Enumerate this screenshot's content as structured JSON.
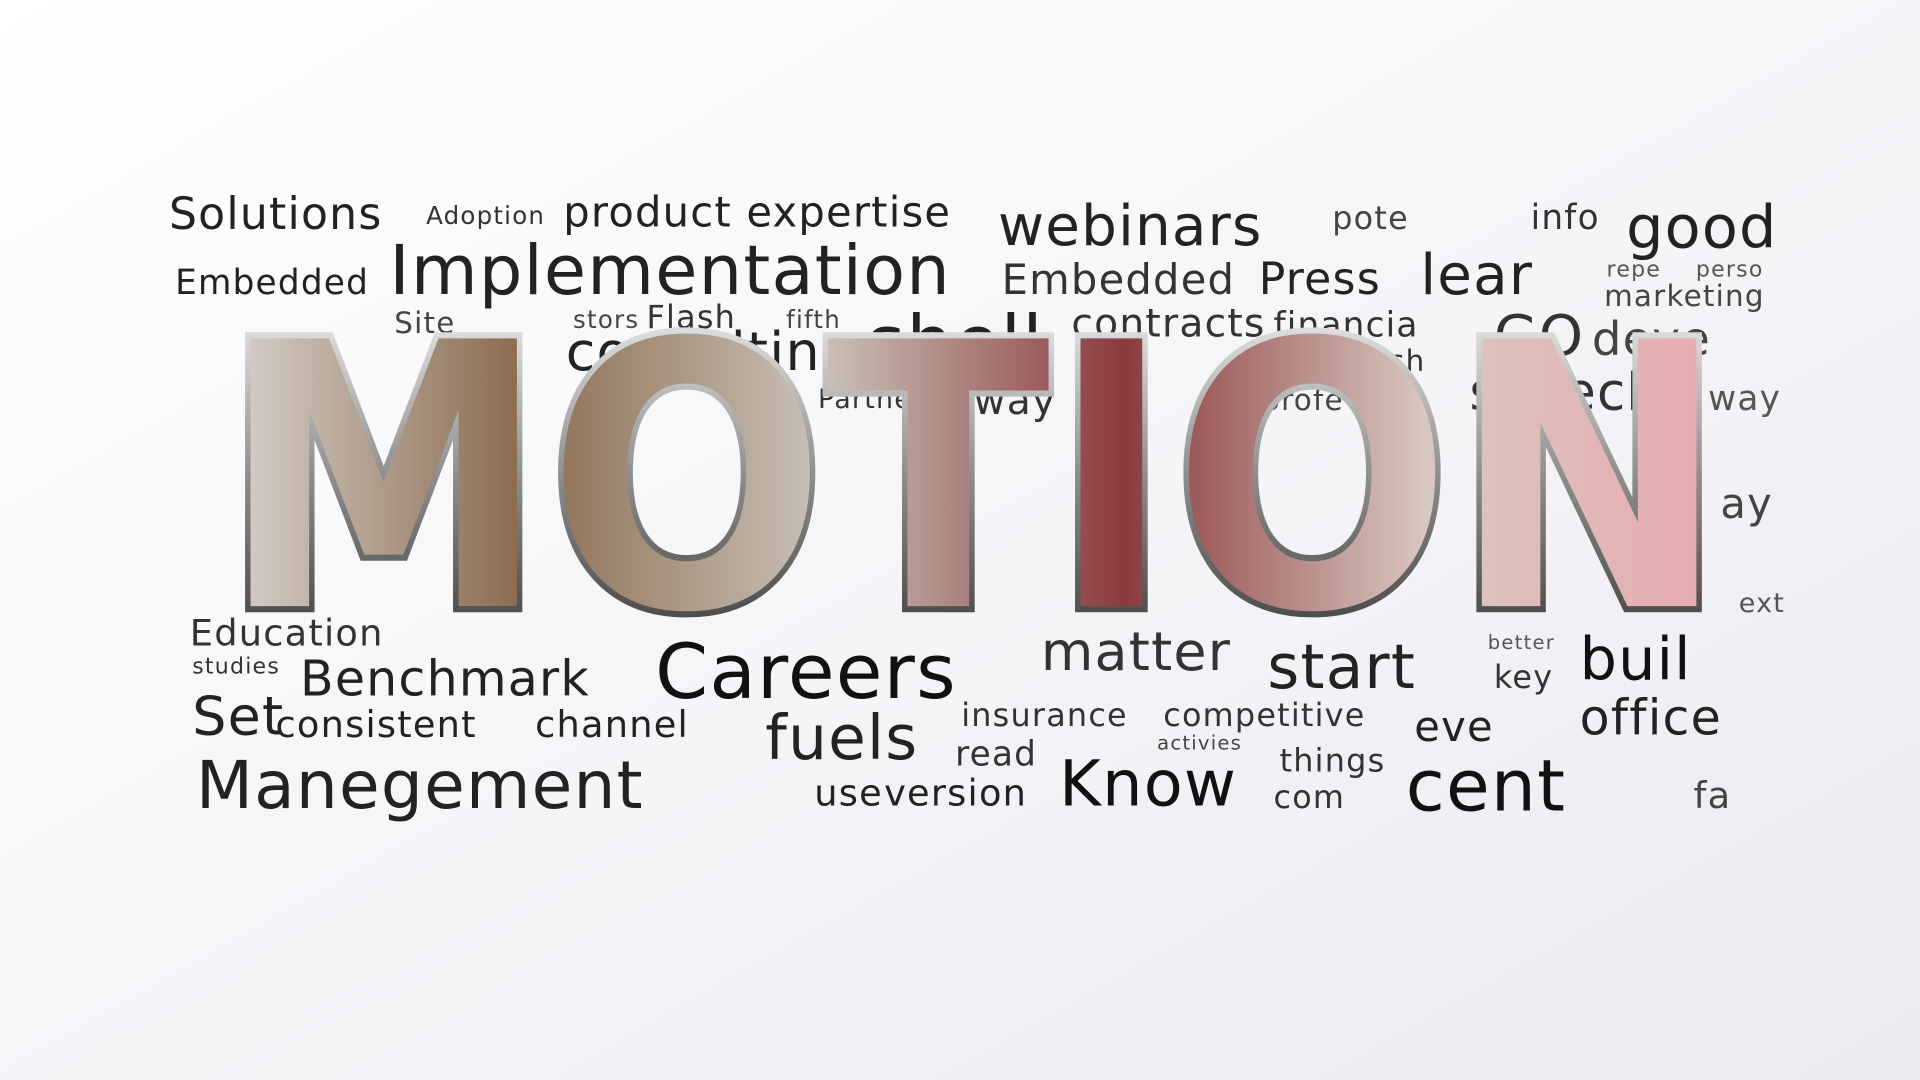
{
  "words": [
    "Solutions",
    "Adoption",
    "product expertise",
    "webinars",
    "pote",
    "info",
    "good",
    "Embedded",
    "Implementation",
    "Embedded",
    "Press",
    "lear",
    "repe",
    "perso",
    "marketing",
    "Site",
    "stors",
    "Flash",
    "fifth",
    "consulting",
    "shell",
    "contracts",
    "financia",
    "GO",
    "deve",
    "relationsh",
    "Partners",
    "way",
    "profe",
    "speech",
    "way",
    "Education",
    "studies",
    "Benchmark",
    "Careers",
    "matter",
    "better",
    "start",
    "key",
    "buil",
    "Set",
    "consistent",
    "channel",
    "fuels",
    "insurance",
    "competitive",
    "eve",
    "office",
    "read",
    "activies",
    "things",
    "Manegement",
    "use",
    "version",
    "Know",
    "com",
    "cent",
    "fa",
    "ay",
    "ext"
  ],
  "logo": "MOTION"
}
